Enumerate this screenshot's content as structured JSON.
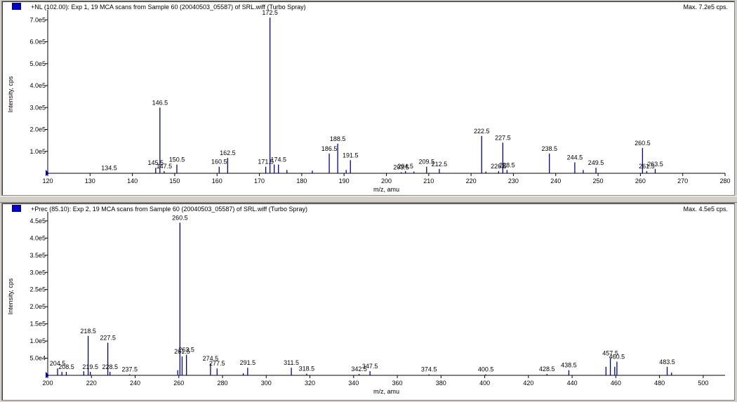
{
  "panels": [
    {
      "title": "+NL (102.00): Exp 1, 19 MCA scans from Sample 60 (20040503_05587) of SRL.wiff (Turbo Spray)",
      "max_label": "Max. 7.2e5 cps."
    },
    {
      "title": "+Prec (85.10): Exp 2, 19 MCA scans from Sample 60 (20040503_05587) of SRL.wiff (Turbo Spray)",
      "max_label": "Max. 4.5e5 cps."
    }
  ],
  "chart_data": [
    {
      "type": "bar",
      "title": "+NL (102.00): Exp 1, 19 MCA scans from Sample 60 (20040503_05587) of SRL.wiff (Turbo Spray)",
      "xlabel": "m/z, amu",
      "ylabel": "Intensity, cps",
      "xlim": [
        120,
        280
      ],
      "ylim": [
        0,
        720000
      ],
      "x_ticks": [
        120,
        130,
        140,
        150,
        160,
        170,
        180,
        190,
        200,
        210,
        220,
        230,
        240,
        250,
        260,
        270,
        280
      ],
      "y_ticks": [
        {
          "v": 100000,
          "label": "1.0e5"
        },
        {
          "v": 200000,
          "label": "2.0e5"
        },
        {
          "v": 300000,
          "label": "3.0e5"
        },
        {
          "v": 400000,
          "label": "4.0e5"
        },
        {
          "v": 500000,
          "label": "5.0e5"
        },
        {
          "v": 600000,
          "label": "6.0e5"
        },
        {
          "v": 700000,
          "label": "7.0e5"
        }
      ],
      "peaks": [
        {
          "x": 134.5,
          "y": 1500,
          "label": "134.5"
        },
        {
          "x": 145.5,
          "y": 25000,
          "label": "145.5"
        },
        {
          "x": 146.5,
          "y": 300000,
          "label": "146.5"
        },
        {
          "x": 147.5,
          "y": 10000,
          "label": "147.5"
        },
        {
          "x": 150.5,
          "y": 40000,
          "label": "150.5"
        },
        {
          "x": 160.5,
          "y": 30000,
          "label": "160.5"
        },
        {
          "x": 162.5,
          "y": 70000,
          "label": "162.5"
        },
        {
          "x": 171.5,
          "y": 30000,
          "label": "171.5"
        },
        {
          "x": 172.5,
          "y": 710000,
          "label": "172.5"
        },
        {
          "x": 173.5,
          "y": 40000,
          "label": ""
        },
        {
          "x": 174.5,
          "y": 40000,
          "label": "174.5"
        },
        {
          "x": 176.5,
          "y": 15000,
          "label": ""
        },
        {
          "x": 182.5,
          "y": 12000,
          "label": ""
        },
        {
          "x": 186.5,
          "y": 90000,
          "label": "186.5"
        },
        {
          "x": 188.5,
          "y": 135000,
          "label": "188.5"
        },
        {
          "x": 190.5,
          "y": 15000,
          "label": ""
        },
        {
          "x": 191.5,
          "y": 60000,
          "label": "191.5"
        },
        {
          "x": 203.5,
          "y": 5000,
          "label": "203.5"
        },
        {
          "x": 204.5,
          "y": 10000,
          "label": "204.5"
        },
        {
          "x": 206.5,
          "y": 8000,
          "label": ""
        },
        {
          "x": 209.5,
          "y": 30000,
          "label": "209.5"
        },
        {
          "x": 212.5,
          "y": 20000,
          "label": "212.5"
        },
        {
          "x": 222.5,
          "y": 170000,
          "label": "222.5"
        },
        {
          "x": 223.5,
          "y": 8000,
          "label": ""
        },
        {
          "x": 226.5,
          "y": 10000,
          "label": "226.5"
        },
        {
          "x": 227.5,
          "y": 140000,
          "label": "227.5"
        },
        {
          "x": 228.5,
          "y": 15000,
          "label": "228.5"
        },
        {
          "x": 238.5,
          "y": 90000,
          "label": "238.5"
        },
        {
          "x": 244.5,
          "y": 50000,
          "label": "244.5"
        },
        {
          "x": 246.5,
          "y": 15000,
          "label": ""
        },
        {
          "x": 249.5,
          "y": 25000,
          "label": "249.5"
        },
        {
          "x": 260.5,
          "y": 115000,
          "label": "260.5"
        },
        {
          "x": 261.5,
          "y": 10000,
          "label": "261.5"
        },
        {
          "x": 263.5,
          "y": 20000,
          "label": "263.5"
        }
      ]
    },
    {
      "type": "bar",
      "title": "+Prec (85.10): Exp 2, 19 MCA scans from Sample 60 (20040503_05587) of SRL.wiff (Turbo Spray)",
      "xlabel": "m/z, amu",
      "ylabel": "Intensity, cps",
      "xlim": [
        200,
        510
      ],
      "ylim": [
        0,
        460000
      ],
      "x_ticks": [
        200,
        220,
        240,
        260,
        280,
        300,
        320,
        340,
        360,
        380,
        400,
        420,
        440,
        460,
        480,
        500
      ],
      "y_ticks": [
        {
          "v": 50000,
          "label": "5.0e4"
        },
        {
          "v": 100000,
          "label": "1.0e5"
        },
        {
          "v": 150000,
          "label": "1.5e5"
        },
        {
          "v": 200000,
          "label": "2.0e5"
        },
        {
          "v": 250000,
          "label": "2.5e5"
        },
        {
          "v": 300000,
          "label": "3.0e5"
        },
        {
          "v": 350000,
          "label": "3.5e5"
        },
        {
          "v": 400000,
          "label": "4.0e5"
        },
        {
          "v": 450000,
          "label": "4.5e5"
        }
      ],
      "peaks": [
        {
          "x": 204.5,
          "y": 20000,
          "label": "204.5"
        },
        {
          "x": 206.5,
          "y": 10000,
          "label": ""
        },
        {
          "x": 208.5,
          "y": 10000,
          "label": "208.5"
        },
        {
          "x": 216.5,
          "y": 12000,
          "label": ""
        },
        {
          "x": 218.5,
          "y": 115000,
          "label": "218.5"
        },
        {
          "x": 219.5,
          "y": 10000,
          "label": "219.5"
        },
        {
          "x": 227.5,
          "y": 95000,
          "label": "227.5"
        },
        {
          "x": 228.5,
          "y": 10000,
          "label": "228.5"
        },
        {
          "x": 237.5,
          "y": 3000,
          "label": "237.5"
        },
        {
          "x": 259.5,
          "y": 15000,
          "label": ""
        },
        {
          "x": 260.5,
          "y": 445000,
          "label": "260.5"
        },
        {
          "x": 261.5,
          "y": 55000,
          "label": "261.5"
        },
        {
          "x": 263.5,
          "y": 60000,
          "label": "263.5"
        },
        {
          "x": 274.5,
          "y": 35000,
          "label": "274.5"
        },
        {
          "x": 277.5,
          "y": 20000,
          "label": "277.5"
        },
        {
          "x": 289.5,
          "y": 6000,
          "label": ""
        },
        {
          "x": 291.5,
          "y": 22000,
          "label": "291.5"
        },
        {
          "x": 311.5,
          "y": 22000,
          "label": "311.5"
        },
        {
          "x": 318.5,
          "y": 5000,
          "label": "318.5"
        },
        {
          "x": 342.5,
          "y": 4000,
          "label": "342.5"
        },
        {
          "x": 347.5,
          "y": 12000,
          "label": "347.5"
        },
        {
          "x": 374.5,
          "y": 3000,
          "label": "374.5"
        },
        {
          "x": 400.5,
          "y": 3000,
          "label": "400.5"
        },
        {
          "x": 428.5,
          "y": 4000,
          "label": "428.5"
        },
        {
          "x": 438.5,
          "y": 15000,
          "label": "438.5"
        },
        {
          "x": 455.5,
          "y": 25000,
          "label": ""
        },
        {
          "x": 457.5,
          "y": 50000,
          "label": "457.5"
        },
        {
          "x": 459.5,
          "y": 25000,
          "label": ""
        },
        {
          "x": 460.5,
          "y": 40000,
          "label": "460.5"
        },
        {
          "x": 483.5,
          "y": 25000,
          "label": "483.5"
        },
        {
          "x": 485.5,
          "y": 8000,
          "label": ""
        }
      ]
    }
  ],
  "colors": {
    "peak": "#000099",
    "axis": "#000000",
    "marker": "#0000cc"
  }
}
